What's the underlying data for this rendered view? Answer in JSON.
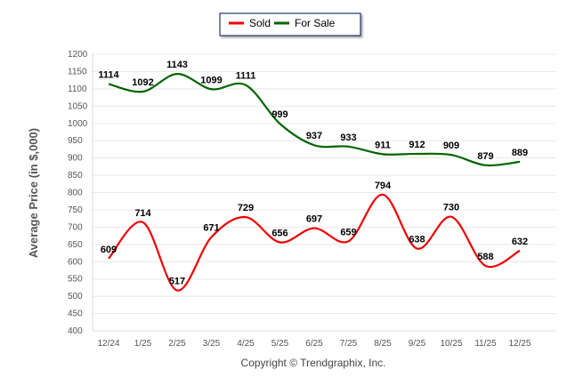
{
  "chart_data": {
    "type": "line",
    "categories": [
      "12/24",
      "1/25",
      "2/25",
      "3/25",
      "4/25",
      "5/25",
      "6/25",
      "7/25",
      "8/25",
      "9/25",
      "10/25",
      "11/25",
      "12/25"
    ],
    "series": [
      {
        "name": "Sold",
        "color": "#ee0000",
        "values": [
          609,
          714,
          517,
          671,
          729,
          656,
          697,
          659,
          794,
          638,
          730,
          588,
          632
        ]
      },
      {
        "name": "For Sale",
        "color": "#006400",
        "values": [
          1114,
          1092,
          1143,
          1099,
          1111,
          999,
          937,
          933,
          911,
          912,
          909,
          879,
          889
        ]
      }
    ],
    "ylabel": "Average Price (in $,000)",
    "xlabel": "",
    "ylim": [
      400,
      1200
    ],
    "ytick_step": 50,
    "grid": true,
    "legend": "top-center",
    "footer": "Copyright © Trendgraphix, Inc."
  }
}
